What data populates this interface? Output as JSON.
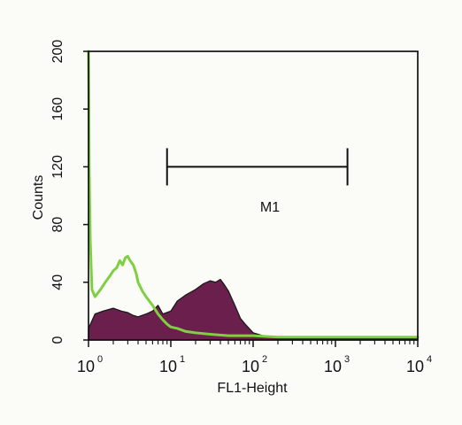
{
  "chart_data": {
    "type": "area",
    "title": "",
    "xlabel": "FL1-Height",
    "ylabel": "Counts",
    "x_scale": "log",
    "xlim": [
      1,
      10000
    ],
    "ylim": [
      0,
      200
    ],
    "x_ticks": [
      {
        "value": 1,
        "base": "10",
        "exp": "0"
      },
      {
        "value": 10,
        "base": "10",
        "exp": "1"
      },
      {
        "value": 100,
        "base": "10",
        "exp": "2"
      },
      {
        "value": 1000,
        "base": "10",
        "exp": "3"
      },
      {
        "value": 10000,
        "base": "10",
        "exp": "4"
      }
    ],
    "y_ticks": [
      "0",
      "40",
      "80",
      "120",
      "160",
      "200"
    ],
    "marker": {
      "label": "M1",
      "x_start": 9,
      "x_end": 1400,
      "y": 120
    },
    "colors": {
      "filled_histogram": "#6b1f4d",
      "filled_outline": "#1a1a1a",
      "overlay_line": "#7fcf42",
      "axis": "#111111",
      "background": "#fbfbf8"
    },
    "series": [
      {
        "name": "",
        "style": "filled",
        "x": [
          1,
          1.2,
          1.5,
          2,
          2.5,
          3,
          3.5,
          4,
          5,
          6,
          7,
          8,
          10,
          12,
          15,
          20,
          25,
          30,
          35,
          40,
          45,
          50,
          60,
          70,
          80,
          100,
          150,
          200,
          300,
          500,
          1000,
          2000,
          5000,
          10000
        ],
        "y": [
          8,
          18,
          20,
          22,
          20,
          19,
          17,
          16,
          18,
          20,
          24,
          18,
          20,
          27,
          31,
          35,
          39,
          41,
          40,
          42,
          38,
          34,
          24,
          15,
          11,
          5,
          2,
          1,
          1,
          1,
          1,
          1,
          1,
          1
        ]
      },
      {
        "name": "",
        "style": "line",
        "x": [
          1,
          1.01,
          1.02,
          1.05,
          1.1,
          1.2,
          1.4,
          1.6,
          1.8,
          2,
          2.2,
          2.4,
          2.6,
          2.8,
          3,
          3.2,
          3.5,
          3.8,
          4,
          4.5,
          5,
          6,
          7,
          8,
          9,
          10,
          12,
          15,
          20,
          30,
          50,
          100,
          200,
          500,
          1000,
          5000,
          10000
        ],
        "y": [
          200,
          170,
          120,
          70,
          35,
          30,
          35,
          40,
          44,
          48,
          50,
          55,
          52,
          57,
          58,
          55,
          52,
          46,
          40,
          34,
          30,
          24,
          18,
          14,
          11,
          9,
          8,
          6,
          5,
          4,
          3,
          3,
          2,
          2,
          2,
          2,
          2
        ]
      }
    ]
  }
}
